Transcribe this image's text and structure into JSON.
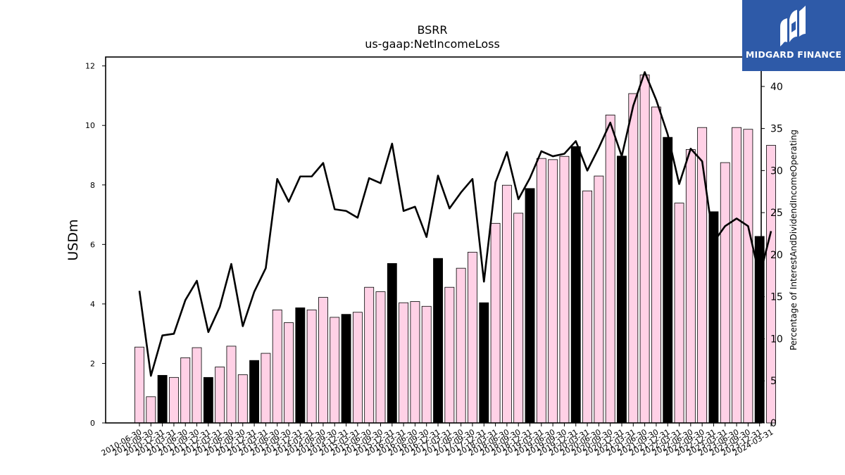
{
  "logo": {
    "text": "MIDGARD FINANCE"
  },
  "colors": {
    "accent_bar": "#000000",
    "normal_bar": "#ffd1e6",
    "bar_edge": "#000000",
    "line": "#000000",
    "logo_bg": "#2e5aa8"
  },
  "chart_data": {
    "type": "bar",
    "title": "BSRR",
    "subtitle": "us-gaap:NetIncomeLoss",
    "ylabel": "USDm",
    "y2label": "Percentage of InterestAndDividendIncomeOperating",
    "ylim": [
      0,
      12.3
    ],
    "y2lim": [
      0,
      43.5
    ],
    "yticks": [
      0,
      2,
      4,
      6,
      8,
      10,
      12
    ],
    "y2ticks": [
      0,
      5,
      10,
      15,
      20,
      25,
      30,
      35,
      40
    ],
    "grid": false,
    "categories": [
      "2010-06-30",
      "2010-09-30",
      "2010-12-31",
      "2011-03-31",
      "2011-06-30",
      "2011-09-30",
      "2011-12-31",
      "2012-03-31",
      "2012-06-30",
      "2012-09-30",
      "2012-12-31",
      "2013-03-31",
      "2013-06-30",
      "2013-09-30",
      "2013-12-31",
      "2014-03-31",
      "2014-06-30",
      "2014-09-30",
      "2014-12-31",
      "2015-03-31",
      "2015-06-30",
      "2015-09-30",
      "2015-12-31",
      "2016-03-31",
      "2016-06-30",
      "2016-09-30",
      "2016-12-31",
      "2017-03-31",
      "2017-06-30",
      "2017-09-30",
      "2017-12-31",
      "2018-03-31",
      "2018-06-30",
      "2018-09-30",
      "2018-12-31",
      "2019-03-31",
      "2019-06-30",
      "2019-09-30",
      "2019-12-31",
      "2020-03-31",
      "2020-06-30",
      "2020-09-30",
      "2020-12-31",
      "2021-03-31",
      "2021-06-30",
      "2021-09-30",
      "2021-12-31",
      "2022-03-31",
      "2022-06-30",
      "2022-09-30",
      "2022-12-31",
      "2023-03-31",
      "2023-06-30",
      "2023-09-30",
      "2023-12-31",
      "2024-03-31"
    ],
    "xticklabels": [
      "2010-06-30",
      "2010-09-30",
      "2010-12-31",
      "2011-03-31",
      "2011-06-30",
      "2011-09-30",
      "2011-12-31",
      "2012-03-31",
      "2012-06-30",
      "2012-09-30",
      "2012-12-31",
      "2013-03-31",
      "2013-06-30",
      "2013-09-30",
      "2013-12-31",
      "2014-03-31",
      "2014-06-30",
      "2014-09-30",
      "2014-12-31",
      "2015-03-31",
      "2015-06-30",
      "2015-09-30",
      "2015-12-31",
      "2016-03-31",
      "2016-06-30",
      "2016-09-30",
      "2016-12-31",
      "2017-03-31",
      "2017-06-30",
      "2017-09-30",
      "2017-12-31",
      "2018-03-31",
      "2018-06-30",
      "2018-09-30",
      "2018-12-31",
      "2019-03-31",
      "2019-06-30",
      "2019-09-30",
      "2019-12-31",
      "2020-03-31",
      "2020-06-30",
      "2020-09-30",
      "2020-12-31",
      "2021-03-31",
      "2021-06-30",
      "2021-09-30",
      "2021-12-31",
      "2022-03-31",
      "2022-06-30",
      "2022-09-30",
      "2022-12-31",
      "2023-03-31",
      "2023-06-30",
      "2023-09-30",
      "2023-12-31",
      "2024-03-31"
    ],
    "series": [
      {
        "values": [
          2.55,
          0.88,
          1.6,
          1.53,
          2.19,
          2.53,
          1.53,
          1.88,
          2.58,
          1.62,
          2.1,
          2.34,
          3.8,
          3.37,
          3.87,
          3.8,
          4.22,
          3.55,
          3.65,
          3.72,
          4.56,
          4.41,
          5.36,
          4.04,
          4.08,
          3.92,
          5.53,
          4.56,
          5.2,
          5.74,
          4.04,
          6.71,
          7.99,
          7.05,
          7.88,
          8.89,
          8.85,
          8.96,
          9.29,
          7.8,
          8.3,
          10.35,
          8.97,
          11.07,
          11.7,
          10.62,
          9.6,
          7.39,
          9.19,
          9.93,
          7.1,
          8.75,
          9.93,
          9.87,
          6.27,
          9.33
        ],
        "highlighted": [
          false,
          false,
          true,
          false,
          false,
          false,
          true,
          false,
          false,
          false,
          true,
          false,
          false,
          false,
          true,
          false,
          false,
          false,
          true,
          false,
          false,
          false,
          true,
          false,
          false,
          false,
          true,
          false,
          false,
          false,
          true,
          false,
          false,
          false,
          true,
          false,
          false,
          false,
          true,
          false,
          false,
          false,
          true,
          false,
          false,
          false,
          true,
          false,
          false,
          false,
          true,
          false,
          false,
          false,
          true,
          false
        ]
      },
      {
        "axis": "right",
        "type": "line",
        "values": [
          15.7,
          5.6,
          10.4,
          10.6,
          14.6,
          16.9,
          10.8,
          13.8,
          18.9,
          11.5,
          15.6,
          18.4,
          29.0,
          26.3,
          29.3,
          29.3,
          30.9,
          25.4,
          25.2,
          24.4,
          29.1,
          28.5,
          33.2,
          25.2,
          25.7,
          22.1,
          29.4,
          25.5,
          27.4,
          29.0,
          16.8,
          28.6,
          32.2,
          26.6,
          29.1,
          32.3,
          31.7,
          32.0,
          33.5,
          30.0,
          32.7,
          35.7,
          31.7,
          37.7,
          41.7,
          38.4,
          34.3,
          28.4,
          32.6,
          31.1,
          21.5,
          23.4,
          24.3,
          23.4,
          17.4,
          22.8
        ]
      }
    ]
  }
}
